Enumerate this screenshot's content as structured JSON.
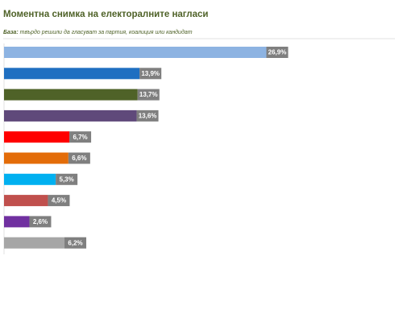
{
  "chart_data": {
    "type": "bar",
    "orientation": "horizontal",
    "title": "Моментна снимка на електоралните нагласи",
    "base_label": "База:",
    "subtitle": "твърдо решили да гласуват за партия, коалиция или кандидат",
    "categories": [
      null,
      null,
      null,
      null,
      null,
      null,
      null,
      null,
      null,
      null
    ],
    "values": [
      26.9,
      13.9,
      13.7,
      13.6,
      6.7,
      6.6,
      5.3,
      4.5,
      2.6,
      6.2
    ],
    "value_labels": [
      "26,9%",
      "13,9%",
      "13,7%",
      "13,6%",
      "6,7%",
      "6,6%",
      "5,3%",
      "4,5%",
      "2,6%",
      "6,2%"
    ],
    "colors": [
      "#8db3e2",
      "#1f6fc1",
      "#4f6228",
      "#5f497a",
      "#ff0000",
      "#e36c09",
      "#00b0f0",
      "#c0504d",
      "#7030a0",
      "#a6a6a6"
    ]
  }
}
